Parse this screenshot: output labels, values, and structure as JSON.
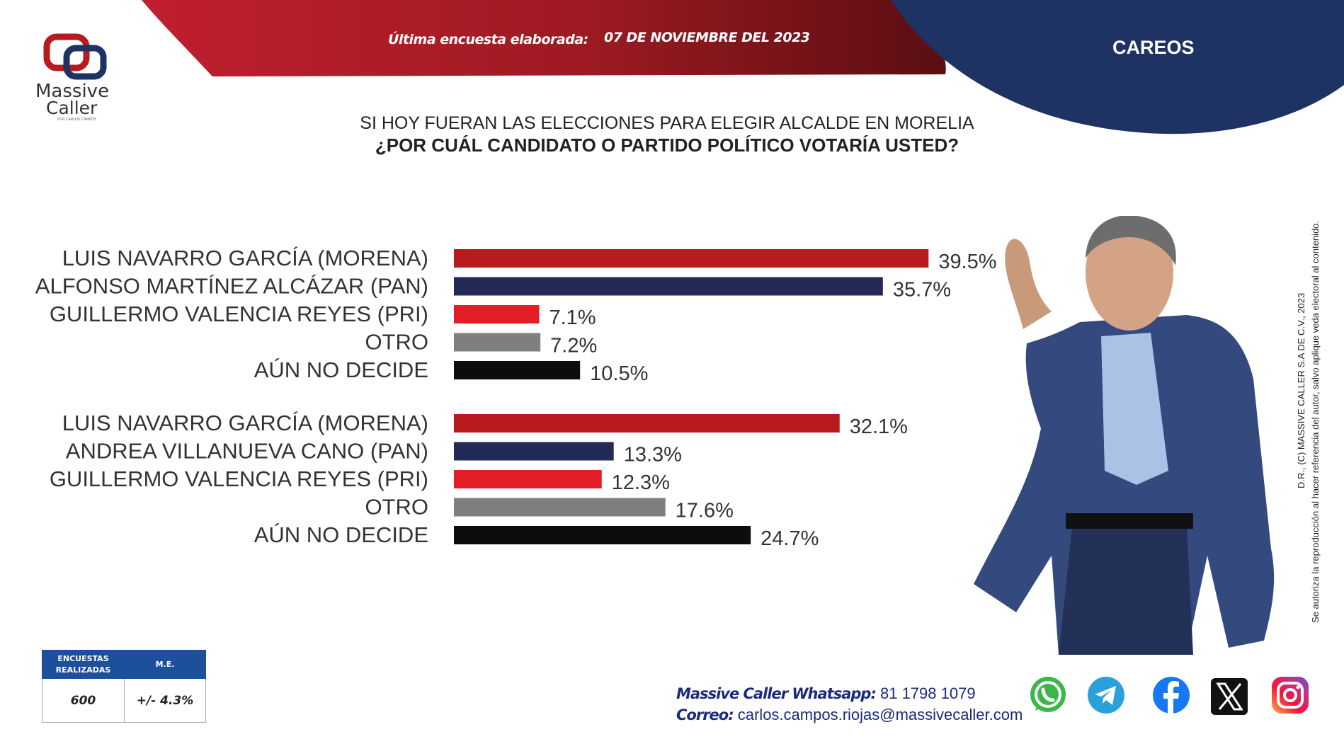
{
  "header": {
    "survey_label": "Última encuesta elaborada:",
    "survey_date": "07 DE NOVIEMBRE DEL 2023",
    "section": "CAREOS"
  },
  "logo": {
    "word1": "Massive",
    "word2": "Caller",
    "tagline": "POR CARLOS CAMPOS"
  },
  "question": {
    "line1": "SI HOY FUERAN LAS ELECCIONES PARA ELEGIR ALCALDE EN MORELIA",
    "line2": "¿POR CUÁL CANDIDATO O PARTIDO POLÍTICO VOTARÍA USTED?"
  },
  "chart_data": [
    {
      "type": "bar",
      "orientation": "horizontal",
      "categories": [
        "LUIS NAVARRO GARCÍA (MORENA)",
        "ALFONSO MARTÍNEZ ALCÁZAR (PAN)",
        "GUILLERMO VALENCIA REYES (PRI)",
        "OTRO",
        "AÚN NO DECIDE"
      ],
      "values": [
        39.5,
        35.7,
        7.1,
        7.2,
        10.5
      ],
      "value_labels": [
        "39.5%",
        "35.7%",
        "7.1%",
        "7.2%",
        "10.5%"
      ],
      "colors": [
        "#b91a1e",
        "#232a55",
        "#e41e26",
        "#7f7f7f",
        "#0d0d0d"
      ]
    },
    {
      "type": "bar",
      "orientation": "horizontal",
      "categories": [
        "LUIS NAVARRO GARCÍA (MORENA)",
        "ANDREA VILLANUEVA CANO (PAN)",
        "GUILLERMO VALENCIA REYES (PRI)",
        "OTRO",
        "AÚN NO DECIDE"
      ],
      "values": [
        32.1,
        13.3,
        12.3,
        17.6,
        24.7
      ],
      "value_labels": [
        "32.1%",
        "13.3%",
        "12.3%",
        "17.6%",
        "24.7%"
      ],
      "colors": [
        "#b91a1e",
        "#232a55",
        "#e41e26",
        "#7f7f7f",
        "#0d0d0d"
      ]
    }
  ],
  "legal": {
    "line1": "D.R., (C) MASSIVE CALLER S.A DE C.V., 2023",
    "line2": "Se autoriza la reproducción al hacer referencia del autor, salvo aplique veda electoral al contenido."
  },
  "stats": {
    "col1_header_a": "ENCUESTAS",
    "col1_header_b": "REALIZADAS",
    "col2_header": "M.E.",
    "encuestas": "600",
    "me": "+/- 4.3%"
  },
  "contact": {
    "whatsapp_label": "Massive Caller Whatsapp:",
    "whatsapp": "81 1798 1079",
    "email_label": "Correo:",
    "email": "carlos.campos.riojas@massivecaller.com"
  },
  "social": [
    "whatsapp-icon",
    "telegram-icon",
    "facebook-icon",
    "x-icon",
    "instagram-icon"
  ],
  "colors": {
    "red": "#b91a1e",
    "navy": "#232a55",
    "bright_red": "#e41e26",
    "gray": "#7f7f7f",
    "black": "#0d0d0d"
  }
}
